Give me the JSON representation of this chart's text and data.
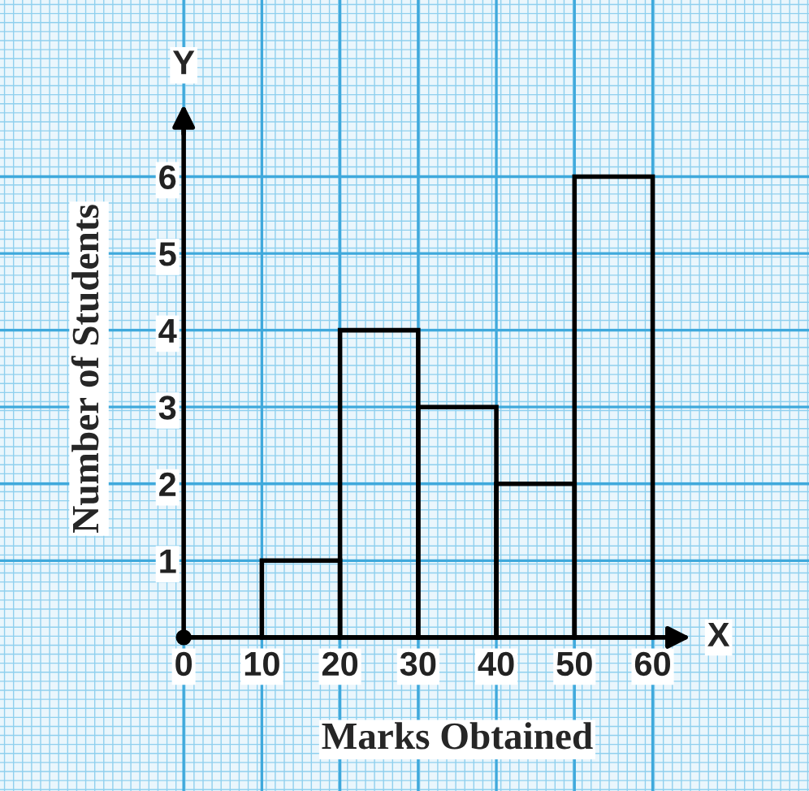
{
  "chart_data": {
    "type": "histogram",
    "xlabel": "Marks Obtained",
    "ylabel": "Number of Students",
    "bins": [
      10,
      20,
      30,
      40,
      50,
      60
    ],
    "values": [
      1,
      4,
      3,
      2,
      6
    ],
    "color": "#000000",
    "xlim": [
      -23.5,
      80
    ],
    "ylim": [
      -2,
      8.3
    ],
    "xticks": [
      0,
      10,
      20,
      30,
      40,
      50,
      60
    ],
    "yticks": [
      1,
      2,
      3,
      4,
      5,
      6
    ],
    "annotations": [
      "X",
      "Y"
    ],
    "grid": true
  }
}
